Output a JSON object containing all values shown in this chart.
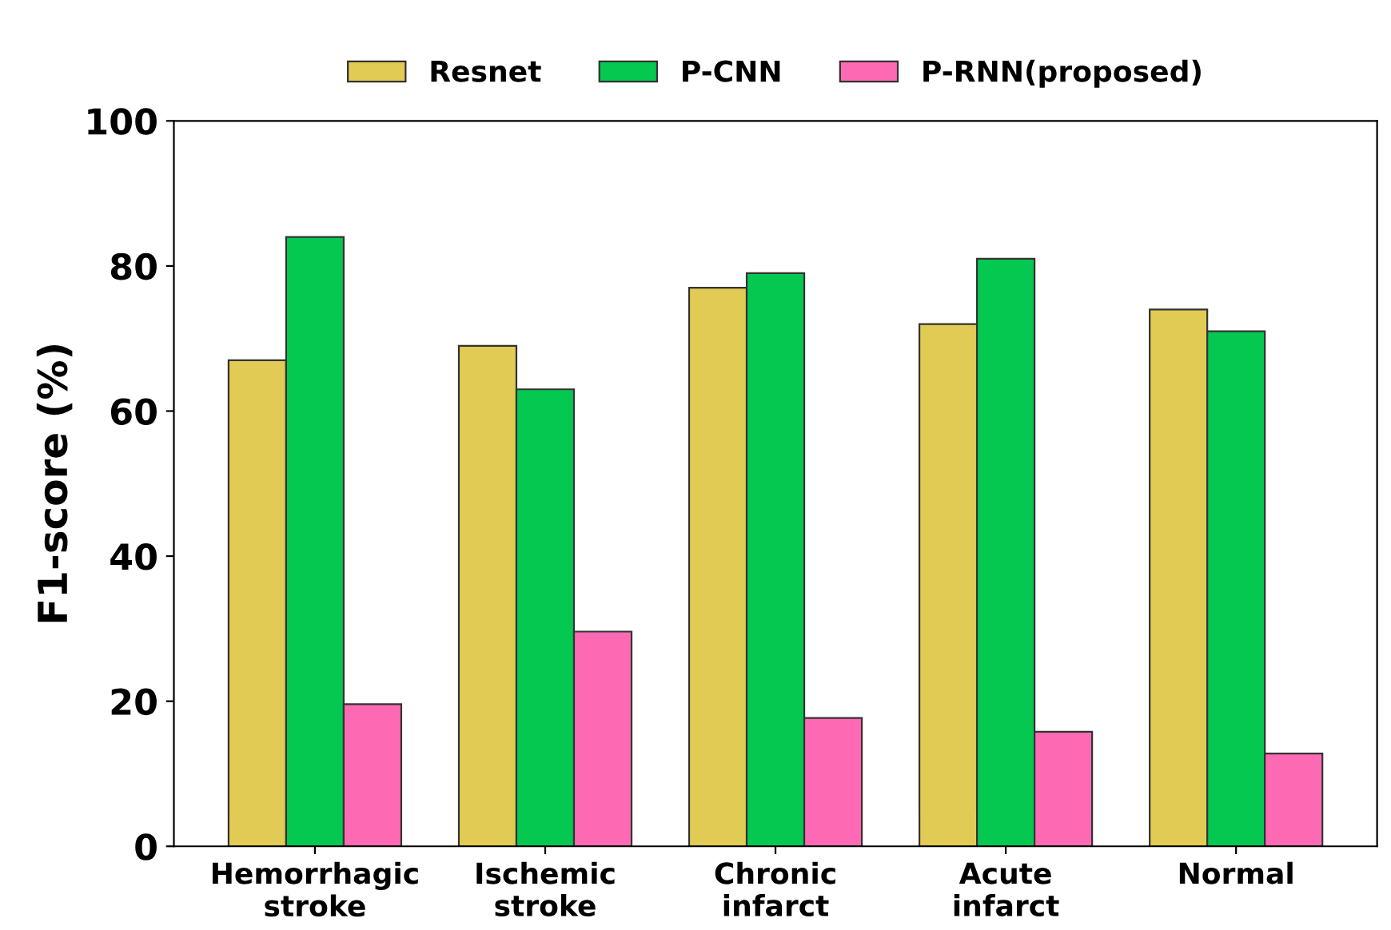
{
  "chart_data": {
    "type": "bar",
    "ylabel": "F1-score (%)",
    "categories": [
      "Hemorrhagic\nstroke",
      "Ischemic\nstroke",
      "Chronic\ninfarct",
      "Acute\ninfarct",
      "Normal"
    ],
    "series": [
      {
        "name": "Resnet",
        "color": "#e1cb55",
        "values": [
          67,
          69,
          77,
          72,
          74
        ]
      },
      {
        "name": "P-CNN",
        "color": "#05c850",
        "values": [
          84,
          63,
          79,
          81,
          71
        ]
      },
      {
        "name": "P-RNN(proposed)",
        "color": "#fd6ab3",
        "values": [
          19.6,
          29.6,
          17.7,
          15.8,
          12.8
        ]
      }
    ],
    "ylim": [
      0,
      100
    ],
    "yticks": [
      0,
      20,
      40,
      60,
      80,
      100
    ],
    "grid": false,
    "legend": "top"
  }
}
